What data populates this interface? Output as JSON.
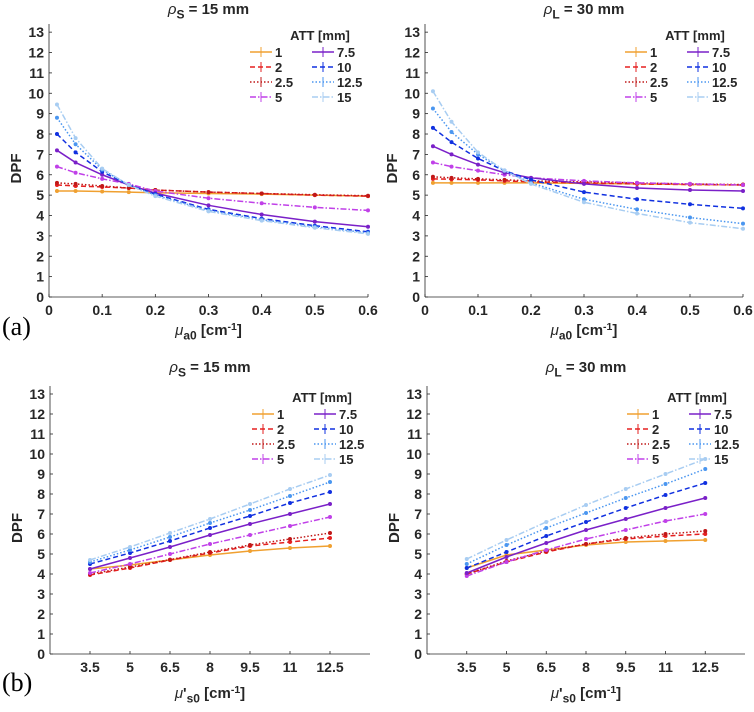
{
  "panel_labels": [
    "(a)",
    "(b)"
  ],
  "series_style": [
    {
      "name": "1",
      "color": "#f0a030",
      "dash": "none"
    },
    {
      "name": "2",
      "color": "#e52020",
      "dash": "5,3"
    },
    {
      "name": "2.5",
      "color": "#c01818",
      "dash": "1.5,2"
    },
    {
      "name": "5",
      "color": "#c040e8",
      "dash": "6,2,1.5,2"
    },
    {
      "name": "7.5",
      "color": "#7a20c8",
      "dash": "none"
    },
    {
      "name": "10",
      "color": "#1030e0",
      "dash": "5,3"
    },
    {
      "name": "12.5",
      "color": "#4a96f0",
      "dash": "1.5,2"
    },
    {
      "name": "15",
      "color": "#a8cdf2",
      "dash": "6,2,1.5,2"
    }
  ],
  "chart_data": [
    {
      "type": "line",
      "title": {
        "base": "ρ",
        "sub": "S",
        "text": " = 15 mm"
      },
      "ylabel": "DPF",
      "xlabel": {
        "base": "μ",
        "prime": "",
        "sub": "a0",
        "text": " [cm",
        "sup": "-1",
        "end": "]"
      },
      "xlim": [
        0,
        0.6
      ],
      "ylim": [
        0,
        13.4
      ],
      "xticks": [
        0,
        0.1,
        0.2,
        0.3,
        0.4,
        0.5,
        0.6
      ],
      "xtick_labels": [
        "0",
        "0.1",
        "0.2",
        "0.3",
        "0.4",
        "0.5",
        "0.6"
      ],
      "yticks": [
        0,
        1,
        2,
        3,
        4,
        5,
        6,
        7,
        8,
        9,
        10,
        11,
        12,
        13
      ],
      "legend_title": "ATT [mm]",
      "legend_position": "top-right",
      "x": [
        0.015,
        0.05,
        0.1,
        0.15,
        0.2,
        0.3,
        0.4,
        0.5,
        0.6
      ],
      "series": [
        {
          "name": "1",
          "values": [
            5.2,
            5.2,
            5.18,
            5.15,
            5.12,
            5.08,
            5.05,
            5.0,
            4.95
          ]
        },
        {
          "name": "2",
          "values": [
            5.5,
            5.45,
            5.4,
            5.35,
            5.25,
            5.15,
            5.08,
            5.0,
            4.95
          ]
        },
        {
          "name": "2.5",
          "values": [
            5.6,
            5.55,
            5.45,
            5.35,
            5.25,
            5.15,
            5.08,
            5.02,
            4.97
          ]
        },
        {
          "name": "5",
          "values": [
            6.4,
            6.1,
            5.8,
            5.55,
            5.2,
            4.85,
            4.6,
            4.4,
            4.25
          ]
        },
        {
          "name": "7.5",
          "values": [
            7.2,
            6.6,
            6.0,
            5.5,
            5.1,
            4.5,
            4.05,
            3.7,
            3.45
          ]
        },
        {
          "name": "10",
          "values": [
            8.0,
            7.1,
            6.15,
            5.5,
            5.05,
            4.3,
            3.85,
            3.5,
            3.2
          ]
        },
        {
          "name": "12.5",
          "values": [
            8.8,
            7.5,
            6.25,
            5.5,
            5.0,
            4.25,
            3.8,
            3.45,
            3.15
          ]
        },
        {
          "name": "15",
          "values": [
            9.45,
            7.8,
            6.3,
            5.5,
            4.95,
            4.2,
            3.75,
            3.4,
            3.1
          ]
        }
      ]
    },
    {
      "type": "line",
      "title": {
        "base": "ρ",
        "sub": "L",
        "text": " = 30 mm"
      },
      "ylabel": "DPF",
      "xlabel": {
        "base": "μ",
        "prime": "",
        "sub": "a0",
        "text": " [cm",
        "sup": "-1",
        "end": "]"
      },
      "xlim": [
        0,
        0.6
      ],
      "ylim": [
        0,
        13.4
      ],
      "xticks": [
        0,
        0.1,
        0.2,
        0.3,
        0.4,
        0.5,
        0.6
      ],
      "xtick_labels": [
        "0",
        "0.1",
        "0.2",
        "0.3",
        "0.4",
        "0.5",
        "0.6"
      ],
      "yticks": [
        0,
        1,
        2,
        3,
        4,
        5,
        6,
        7,
        8,
        9,
        10,
        11,
        12,
        13
      ],
      "legend_title": "ATT [mm]",
      "legend_position": "top-right",
      "x": [
        0.015,
        0.05,
        0.1,
        0.15,
        0.2,
        0.3,
        0.4,
        0.5,
        0.6
      ],
      "series": [
        {
          "name": "1",
          "values": [
            5.6,
            5.6,
            5.6,
            5.6,
            5.6,
            5.58,
            5.55,
            5.52,
            5.5
          ]
        },
        {
          "name": "2",
          "values": [
            5.8,
            5.78,
            5.75,
            5.7,
            5.65,
            5.6,
            5.55,
            5.52,
            5.5
          ]
        },
        {
          "name": "2.5",
          "values": [
            5.9,
            5.85,
            5.8,
            5.75,
            5.7,
            5.65,
            5.6,
            5.55,
            5.52
          ]
        },
        {
          "name": "5",
          "values": [
            6.6,
            6.4,
            6.2,
            6.0,
            5.85,
            5.7,
            5.6,
            5.55,
            5.5
          ]
        },
        {
          "name": "7.5",
          "values": [
            7.4,
            7.0,
            6.5,
            6.1,
            5.85,
            5.55,
            5.35,
            5.25,
            5.2
          ]
        },
        {
          "name": "10",
          "values": [
            8.3,
            7.6,
            6.8,
            6.2,
            5.75,
            5.15,
            4.8,
            4.55,
            4.35
          ]
        },
        {
          "name": "12.5",
          "values": [
            9.25,
            8.1,
            7.0,
            6.2,
            5.6,
            4.8,
            4.3,
            3.9,
            3.6
          ]
        },
        {
          "name": "15",
          "values": [
            10.1,
            8.6,
            7.1,
            6.2,
            5.55,
            4.65,
            4.1,
            3.65,
            3.35
          ]
        }
      ]
    },
    {
      "type": "line",
      "title": {
        "base": "ρ",
        "sub": "S",
        "text": " = 15 mm"
      },
      "ylabel": "DPF",
      "xlabel": {
        "base": "μ",
        "prime": "'",
        "sub": "s0",
        "text": " [cm",
        "sup": "-1",
        "end": "]"
      },
      "xlim": [
        2,
        14
      ],
      "ylim": [
        0,
        13.4
      ],
      "xticks": [
        3.5,
        5,
        6.5,
        8,
        9.5,
        11,
        12.5
      ],
      "xtick_labels": [
        "3.5",
        "5",
        "6.5",
        "8",
        "9.5",
        "11",
        "12.5"
      ],
      "yticks": [
        0,
        1,
        2,
        3,
        4,
        5,
        6,
        7,
        8,
        9,
        10,
        11,
        12,
        13
      ],
      "legend_title": "ATT [mm]",
      "legend_position": "top-right",
      "x": [
        3.5,
        5,
        6.5,
        8,
        9.5,
        11,
        12.5
      ],
      "series": [
        {
          "name": "1",
          "values": [
            4.25,
            4.45,
            4.7,
            4.95,
            5.15,
            5.3,
            5.4
          ]
        },
        {
          "name": "2",
          "values": [
            3.95,
            4.3,
            4.7,
            5.05,
            5.4,
            5.6,
            5.8
          ]
        },
        {
          "name": "2.5",
          "values": [
            4.0,
            4.35,
            4.72,
            5.1,
            5.45,
            5.75,
            6.05
          ]
        },
        {
          "name": "5",
          "values": [
            4.05,
            4.5,
            5.0,
            5.5,
            5.95,
            6.4,
            6.85
          ]
        },
        {
          "name": "7.5",
          "values": [
            4.25,
            4.8,
            5.35,
            5.95,
            6.5,
            7.0,
            7.5
          ]
        },
        {
          "name": "10",
          "values": [
            4.5,
            5.05,
            5.65,
            6.3,
            6.9,
            7.55,
            8.1
          ]
        },
        {
          "name": "12.5",
          "values": [
            4.6,
            5.2,
            5.85,
            6.55,
            7.2,
            7.9,
            8.6
          ]
        },
        {
          "name": "15",
          "values": [
            4.7,
            5.35,
            6.05,
            6.75,
            7.5,
            8.25,
            8.95
          ]
        }
      ]
    },
    {
      "type": "line",
      "title": {
        "base": "ρ",
        "sub": "L",
        "text": " = 30 mm"
      },
      "ylabel": "DPF",
      "xlabel": {
        "base": "μ",
        "prime": "'",
        "sub": "s0",
        "text": " [cm",
        "sup": "-1",
        "end": "]"
      },
      "xlim": [
        2,
        14
      ],
      "ylim": [
        0,
        13.4
      ],
      "xticks": [
        3.5,
        5,
        6.5,
        8,
        9.5,
        11,
        12.5
      ],
      "xtick_labels": [
        "3.5",
        "5",
        "6.5",
        "8",
        "9.5",
        "11",
        "12.5"
      ],
      "yticks": [
        0,
        1,
        2,
        3,
        4,
        5,
        6,
        7,
        8,
        9,
        10,
        11,
        12,
        13
      ],
      "legend_title": "ATT [mm]",
      "legend_position": "top-right",
      "x": [
        3.5,
        5,
        6.5,
        8,
        9.5,
        11,
        12.5
      ],
      "series": [
        {
          "name": "1",
          "values": [
            4.3,
            4.95,
            5.2,
            5.45,
            5.6,
            5.65,
            5.7
          ]
        },
        {
          "name": "2",
          "values": [
            4.0,
            4.6,
            5.1,
            5.5,
            5.75,
            5.9,
            6.0
          ]
        },
        {
          "name": "2.5",
          "values": [
            4.0,
            4.65,
            5.15,
            5.5,
            5.8,
            6.0,
            6.15
          ]
        },
        {
          "name": "5",
          "values": [
            3.9,
            4.6,
            5.2,
            5.75,
            6.2,
            6.65,
            7.0
          ]
        },
        {
          "name": "7.5",
          "values": [
            4.05,
            4.85,
            5.55,
            6.2,
            6.75,
            7.3,
            7.8
          ]
        },
        {
          "name": "10",
          "values": [
            4.3,
            5.1,
            5.9,
            6.6,
            7.3,
            7.95,
            8.55
          ]
        },
        {
          "name": "12.5",
          "values": [
            4.5,
            5.45,
            6.3,
            7.05,
            7.8,
            8.5,
            9.25
          ]
        },
        {
          "name": "15",
          "values": [
            4.75,
            5.7,
            6.6,
            7.45,
            8.25,
            9.0,
            9.75
          ]
        }
      ]
    }
  ]
}
